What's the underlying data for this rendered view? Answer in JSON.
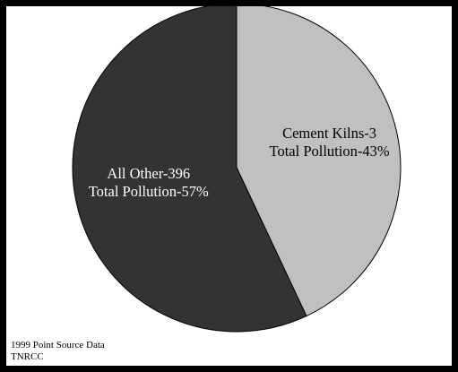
{
  "chart_data": {
    "type": "pie",
    "slices": [
      {
        "label_lines": [
          "Cement Kilns-3",
          "Total Pollution-43%"
        ],
        "value": 43,
        "color": "#c0c0c0",
        "text_color": "#000000"
      },
      {
        "label_lines": [
          "All Other-396",
          "Total Pollution-57%"
        ],
        "value": 57,
        "color": "#333333",
        "text_color": "#ffffff"
      }
    ],
    "start_angle": "12 o'clock",
    "direction": "clockwise",
    "legend": "none"
  },
  "footer": {
    "line1": "1999 Point Source Data",
    "line2": "TNRCC"
  }
}
